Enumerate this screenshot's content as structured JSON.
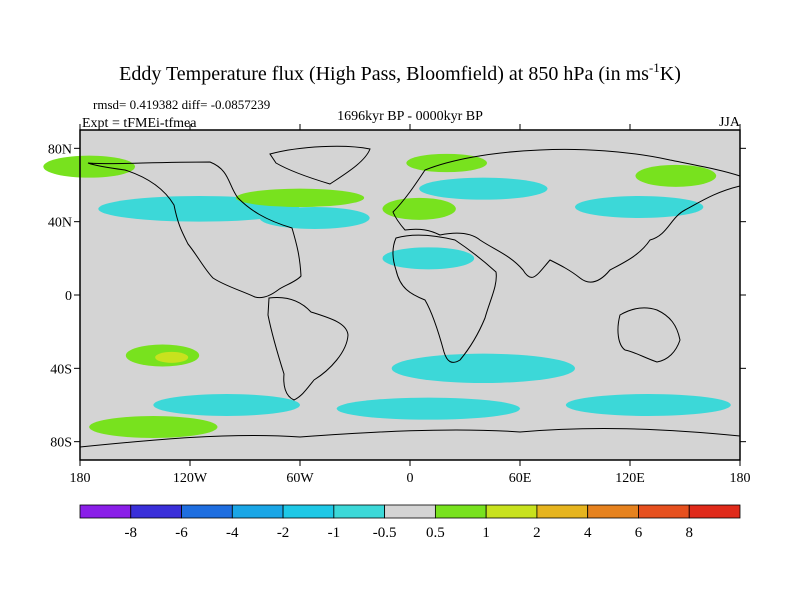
{
  "chart_data": {
    "type": "contour-map",
    "title_main": "Eddy Temperature flux (High Pass, Bloomfield) at 850 hPa (in ms",
    "title_sup": "-1",
    "title_end": "K)",
    "stats": "rmsd= 0.419382 diff= -0.0857239",
    "experiment": "Expt = tFMEi-tfmea",
    "period": "1696kyr BP - 0000kyr BP",
    "season": "JJA",
    "x_axis": {
      "range": [
        -180,
        180
      ],
      "tick_values": [
        -180,
        -120,
        -60,
        0,
        60,
        120,
        180
      ],
      "tick_labels": [
        "180",
        "120W",
        "60W",
        "0",
        "60E",
        "120E",
        "180"
      ]
    },
    "y_axis": {
      "range": [
        -90,
        90
      ],
      "tick_values": [
        80,
        40,
        0,
        -40,
        -80
      ],
      "tick_labels": [
        "80N",
        "40N",
        "0",
        "40S",
        "80S"
      ]
    },
    "colorbar": {
      "levels": [
        "-8",
        "-6",
        "-4",
        "-2",
        "-1",
        "-0.5",
        "0.5",
        "1",
        "2",
        "4",
        "6",
        "8"
      ],
      "colors": [
        "#8a1ee8",
        "#3a2fd9",
        "#1e6ee0",
        "#1aa6e6",
        "#1ec8e6",
        "#3cd8d8",
        "#d4d4d4",
        "#78e21e",
        "#c8e21e",
        "#e6b41e",
        "#e6821e",
        "#e6501e",
        "#e02a1a"
      ]
    },
    "land_mask_color": "#d4d4d4",
    "anomaly_regions": [
      {
        "label": "N Pacific band",
        "lon": -175,
        "lat": 70,
        "w": 25,
        "h": 6,
        "cls": 7
      },
      {
        "label": "N Pacific cyan",
        "lon": -115,
        "lat": 47,
        "w": 55,
        "h": 7,
        "cls": 5
      },
      {
        "label": "N Atlantic green",
        "lon": -60,
        "lat": 53,
        "w": 35,
        "h": 5,
        "cls": 7
      },
      {
        "label": "N Atlantic cyan",
        "lon": -52,
        "lat": 42,
        "w": 30,
        "h": 6,
        "cls": 5
      },
      {
        "label": "Europe green",
        "lon": 5,
        "lat": 47,
        "w": 20,
        "h": 6,
        "cls": 7
      },
      {
        "label": "Arctic green",
        "lon": 20,
        "lat": 72,
        "w": 22,
        "h": 5,
        "cls": 7
      },
      {
        "label": "Siberia cyan",
        "lon": 40,
        "lat": 58,
        "w": 35,
        "h": 6,
        "cls": 5
      },
      {
        "label": "E Asia cyan",
        "lon": 125,
        "lat": 48,
        "w": 35,
        "h": 6,
        "cls": 5
      },
      {
        "label": "NE Asia green",
        "lon": 145,
        "lat": 65,
        "w": 22,
        "h": 6,
        "cls": 7
      },
      {
        "label": "Africa cyan",
        "lon": 10,
        "lat": 20,
        "w": 25,
        "h": 6,
        "cls": 5
      },
      {
        "label": "S Pacific green",
        "lon": -135,
        "lat": -33,
        "w": 20,
        "h": 6,
        "cls": 7
      },
      {
        "label": "S Pacific yellow",
        "lon": -130,
        "lat": -34,
        "w": 9,
        "h": 3,
        "cls": 8
      },
      {
        "label": "S Atlantic cyan",
        "lon": 40,
        "lat": -40,
        "w": 50,
        "h": 8,
        "cls": 5
      },
      {
        "label": "Southern Ocean cyan A",
        "lon": -100,
        "lat": -60,
        "w": 40,
        "h": 6,
        "cls": 5
      },
      {
        "label": "Southern Ocean cyan B",
        "lon": 10,
        "lat": -62,
        "w": 50,
        "h": 6,
        "cls": 5
      },
      {
        "label": "Southern Ocean cyan C",
        "lon": 130,
        "lat": -60,
        "w": 45,
        "h": 6,
        "cls": 5
      },
      {
        "label": "Antarctic green",
        "lon": -140,
        "lat": -72,
        "w": 35,
        "h": 6,
        "cls": 7
      }
    ]
  }
}
